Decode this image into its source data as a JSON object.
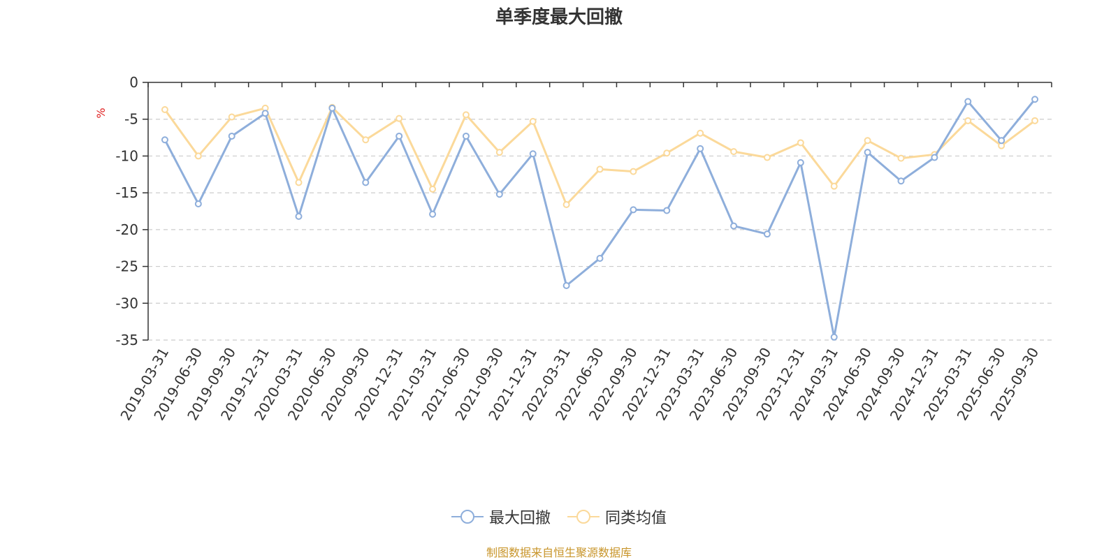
{
  "chart_data": {
    "type": "line",
    "title": "单季度最大回撤",
    "ylabel": "%",
    "ylim": [
      -35,
      0
    ],
    "yticks": [
      0,
      -5,
      -10,
      -15,
      -20,
      -25,
      -30,
      -35
    ],
    "grid": true,
    "legend_position": "bottom",
    "categories": [
      "2019-03-31",
      "2019-06-30",
      "2019-09-30",
      "2019-12-31",
      "2020-03-31",
      "2020-06-30",
      "2020-09-30",
      "2020-12-31",
      "2021-03-31",
      "2021-06-30",
      "2021-09-30",
      "2021-12-31",
      "2022-03-31",
      "2022-06-30",
      "2022-09-30",
      "2022-12-31",
      "2023-03-31",
      "2023-06-30",
      "2023-09-30",
      "2023-12-31",
      "2024-03-31",
      "2024-06-30",
      "2024-09-30",
      "2024-12-31",
      "2025-03-31",
      "2025-06-30",
      "2025-09-30"
    ],
    "series": [
      {
        "name": "最大回撤",
        "color": "#8eaedb",
        "values": [
          -7.8,
          -16.5,
          -7.3,
          -4.2,
          -18.2,
          -3.5,
          -13.6,
          -7.3,
          -17.9,
          -7.3,
          -15.2,
          -9.7,
          -27.6,
          -23.9,
          -17.3,
          -17.4,
          -9.0,
          -19.5,
          -20.6,
          -10.9,
          -34.6,
          -9.5,
          -13.4,
          -10.2,
          -2.6,
          -7.9,
          -2.3
        ]
      },
      {
        "name": "同类均值",
        "color": "#fbd99a",
        "values": [
          -3.7,
          -10.0,
          -4.7,
          -3.5,
          -13.6,
          -3.4,
          -7.8,
          -4.9,
          -14.5,
          -4.4,
          -9.5,
          -5.3,
          -16.6,
          -11.8,
          -12.1,
          -9.6,
          -6.9,
          -9.4,
          -10.2,
          -8.2,
          -14.1,
          -7.9,
          -10.3,
          -9.8,
          -5.2,
          -8.6,
          -5.2
        ]
      }
    ]
  },
  "source_note": "制图数据来自恒生聚源数据库"
}
